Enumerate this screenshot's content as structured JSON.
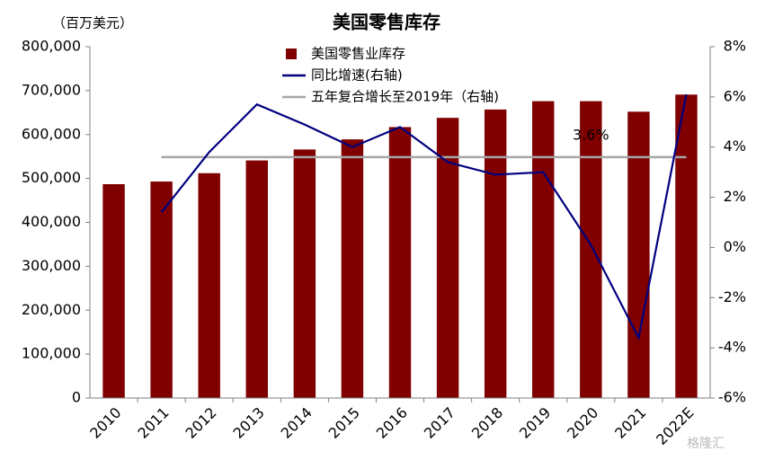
{
  "chart_data": {
    "type": "bar",
    "title": "美国零售库存",
    "y_label": "（百万美元）",
    "categories": [
      "2010",
      "2011",
      "2012",
      "2013",
      "2014",
      "2015",
      "2016",
      "2017",
      "2018",
      "2019",
      "2020",
      "2021",
      "2022E"
    ],
    "series": [
      {
        "name": "美国零售业库存",
        "type": "bar",
        "color": "#800000",
        "values": [
          487000,
          493000,
          512000,
          541000,
          566000,
          589000,
          617000,
          638000,
          657000,
          676000,
          676000,
          652000,
          691000
        ]
      },
      {
        "name": "同比增速(右轴)",
        "type": "line",
        "axis": "y2",
        "color": "#00007f",
        "values": [
          null,
          1.4,
          3.8,
          5.7,
          4.9,
          4.0,
          4.8,
          3.4,
          2.9,
          3.0,
          0.1,
          -3.6,
          6.1
        ]
      },
      {
        "name": "五年复合增长至2019年（右轴)",
        "type": "line",
        "axis": "y2",
        "color": "#a6a6a6",
        "values": [
          null,
          3.6,
          3.6,
          3.6,
          3.6,
          3.6,
          3.6,
          3.6,
          3.6,
          3.6,
          3.6,
          3.6,
          3.6
        ]
      }
    ],
    "annotation": "3.6%",
    "ylim": [
      0,
      800000
    ],
    "yticks": [
      {
        "value": 0,
        "label": "0"
      },
      {
        "value": 100000,
        "label": "100,000"
      },
      {
        "value": 200000,
        "label": "200,000"
      },
      {
        "value": 300000,
        "label": "300,000"
      },
      {
        "value": 400000,
        "label": "400,000"
      },
      {
        "value": 500000,
        "label": "500,000"
      },
      {
        "value": 600000,
        "label": "600,000"
      },
      {
        "value": 700000,
        "label": "700,000"
      },
      {
        "value": 800000,
        "label": "800,000"
      }
    ],
    "y2lim": [
      -6,
      8
    ],
    "y2ticks": [
      {
        "value": -6,
        "label": "-6%"
      },
      {
        "value": -4,
        "label": "-4%"
      },
      {
        "value": -2,
        "label": "-2%"
      },
      {
        "value": 0,
        "label": "0%"
      },
      {
        "value": 2,
        "label": "2%"
      },
      {
        "value": 4,
        "label": "4%"
      },
      {
        "value": 6,
        "label": "6%"
      },
      {
        "value": 8,
        "label": "8%"
      }
    ],
    "grid": false,
    "legend": "top",
    "watermark": "格隆汇"
  }
}
